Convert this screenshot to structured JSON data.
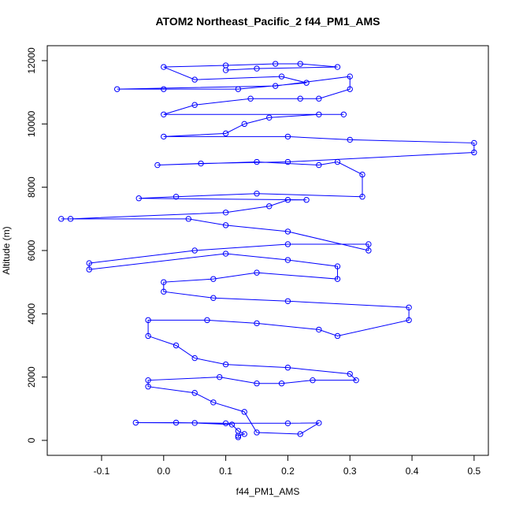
{
  "chart_data": {
    "type": "line",
    "markers": "open-circle",
    "title": "ATOM2 Northeast_Pacific_2 f44_PM1_AMS",
    "x_label": "f44_PM1_AMS",
    "y_label": "Altitude (m)",
    "xlim": [
      -0.1875,
      0.523
    ],
    "ylim": [
      -473,
      12473
    ],
    "xticks": [
      -0.1,
      {
        "value": 0,
        "label": "0.0"
      },
      0.1,
      0.2,
      0.3,
      0.4,
      0.5
    ],
    "yticks": [
      0,
      2000,
      4000,
      6000,
      8000,
      10000,
      12000
    ],
    "series": [
      {
        "color": "#0000ff",
        "x": [
          0.12,
          0.12,
          0.13,
          0.12,
          0.11,
          0.05,
          -0.045,
          0.02,
          0.1,
          0.2,
          0.25,
          0.22,
          0.15,
          0.13,
          0.08,
          0.05,
          -0.025,
          -0.025,
          0.09,
          0.15,
          0.19,
          0.24,
          0.31,
          0.3,
          0.2,
          0.1,
          0.05,
          0.02,
          -0.025,
          -0.025,
          0.07,
          0.15,
          0.25,
          0.28,
          0.395,
          0.395,
          0.2,
          0.08,
          0.0,
          0.0,
          0.08,
          0.15,
          0.28,
          0.28,
          0.2,
          0.1,
          -0.12,
          -0.12,
          0.05,
          0.2,
          0.33,
          0.33,
          0.2,
          0.1,
          0.04,
          -0.165,
          -0.15,
          0.1,
          0.17,
          0.2,
          0.23,
          -0.04,
          0.02,
          0.15,
          0.32,
          0.32,
          0.28,
          0.25,
          0.15,
          -0.01,
          0.06,
          0.2,
          0.5,
          0.5,
          0.3,
          0.2,
          0.0,
          0.1,
          0.13,
          0.17,
          0.25,
          0.29,
          0.0,
          0.05,
          0.14,
          0.22,
          0.25,
          0.3,
          0.3,
          0.18,
          -0.075,
          0.0,
          0.12,
          0.23,
          0.19,
          0.05,
          0.0,
          0.1,
          0.18,
          0.22,
          0.28,
          0.15,
          0.1
        ],
        "y": [
          100,
          150,
          200,
          300,
          500,
          550,
          560,
          560,
          540,
          540,
          550,
          200,
          250,
          900,
          1200,
          1500,
          1700,
          1900,
          2000,
          1800,
          1800,
          1900,
          1900,
          2100,
          2300,
          2400,
          2600,
          3000,
          3300,
          3800,
          3800,
          3700,
          3500,
          3300,
          3800,
          4200,
          4400,
          4500,
          4700,
          5000,
          5100,
          5300,
          5100,
          5500,
          5700,
          5900,
          5400,
          5600,
          6000,
          6200,
          6200,
          6000,
          6600,
          6800,
          7000,
          7000,
          7000,
          7200,
          7400,
          7600,
          7600,
          7650,
          7700,
          7800,
          7700,
          8400,
          8800,
          8700,
          8800,
          8700,
          8750,
          8800,
          9100,
          9400,
          9500,
          9600,
          9600,
          9700,
          10000,
          10200,
          10300,
          10300,
          10300,
          10600,
          10800,
          10800,
          10800,
          11100,
          11500,
          11200,
          11100,
          11100,
          11100,
          11300,
          11500,
          11400,
          11800,
          11850,
          11900,
          11900,
          11800,
          11750,
          11700
        ]
      }
    ]
  }
}
